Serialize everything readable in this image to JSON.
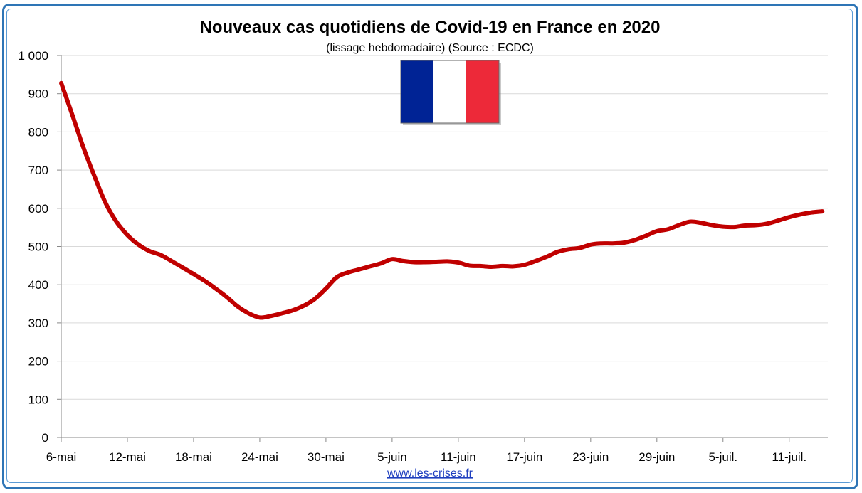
{
  "chart_data": {
    "type": "line",
    "title": "Nouveaux cas quotidiens de Covid-19 en France en 2020",
    "subtitle": "(lissage hebdomadaire) (Source : ECDC)",
    "source_link": "www.les-crises.fr",
    "xlabel": "",
    "ylabel": "",
    "ylim": [
      0,
      1000
    ],
    "yticks": [
      0,
      100,
      200,
      300,
      400,
      500,
      600,
      700,
      800,
      900,
      1000
    ],
    "ytick_labels": [
      "0",
      "100",
      "200",
      "300",
      "400",
      "500",
      "600",
      "700",
      "800",
      "900",
      "1 000"
    ],
    "xtick_labels": [
      "6-mai",
      "12-mai",
      "18-mai",
      "24-mai",
      "30-mai",
      "5-juin",
      "11-juin",
      "17-juin",
      "23-juin",
      "29-juin",
      "5-juil.",
      "11-juil."
    ],
    "xtick_day_index": [
      0,
      6,
      12,
      18,
      24,
      30,
      36,
      42,
      48,
      54,
      60,
      66
    ],
    "x_start": "6-mai",
    "grid": true,
    "line_color": "#c00000",
    "flag_colors": [
      "#002395",
      "#ffffff",
      "#ed2939"
    ],
    "series": [
      {
        "values": [
          928,
          845,
          760,
          685,
          615,
          565,
          530,
          505,
          488,
          478,
          462,
          445,
          428,
          410,
          390,
          368,
          343,
          325,
          314,
          318,
          325,
          333,
          345,
          363,
          390,
          420,
          432,
          440,
          448,
          456,
          467,
          462,
          459,
          459,
          460,
          461,
          458,
          450,
          449,
          447,
          449,
          448,
          452,
          462,
          473,
          486,
          493,
          496,
          505,
          508,
          508,
          510,
          517,
          528,
          540,
          545,
          556,
          565,
          562,
          556,
          552,
          551,
          555,
          556,
          560,
          568,
          577,
          584,
          589,
          592
        ]
      }
    ]
  }
}
